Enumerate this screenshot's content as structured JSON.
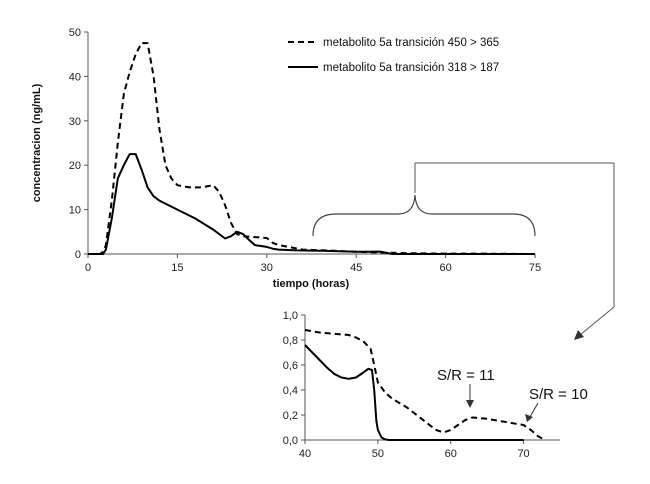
{
  "chart_data": [
    {
      "type": "line",
      "xlabel": "tiempo (horas)",
      "ylabel": "concentracion (ng/mL)",
      "xlim": [
        0,
        75
      ],
      "ylim": [
        0,
        50
      ],
      "xticks": [
        "0",
        "15",
        "30",
        "45",
        "60",
        "75"
      ],
      "yticks": [
        "0",
        "10",
        "20",
        "30",
        "40",
        "50"
      ],
      "legend_position": "top-right",
      "series": [
        {
          "name": "metabolito 5a transición 450 > 365",
          "style": "dashed",
          "color": "#000000",
          "x": [
            0,
            2,
            2.5,
            3,
            4,
            5,
            6,
            7,
            8,
            9,
            10,
            11,
            12,
            13,
            14,
            15,
            17,
            19,
            21,
            22,
            23,
            24,
            25,
            26,
            28,
            30,
            31,
            32,
            34,
            36,
            40,
            45,
            50,
            55,
            60,
            65,
            70,
            75
          ],
          "y": [
            0,
            0,
            0.5,
            2,
            12,
            25,
            36,
            41,
            45,
            47.5,
            47.5,
            40,
            28,
            20,
            17,
            15.5,
            15,
            15,
            15.5,
            14,
            11,
            7,
            4.5,
            4,
            3.8,
            3.6,
            2.5,
            2,
            1.5,
            1,
            0.8,
            0.5,
            0.3,
            0.15,
            0.1,
            0.1,
            0.05,
            0
          ]
        },
        {
          "name": "metabolito 5a transición 318 > 187",
          "style": "solid",
          "color": "#000000",
          "x": [
            0,
            2.5,
            3,
            4,
            5,
            6,
            7,
            8,
            9,
            10,
            11,
            12,
            15,
            18,
            21,
            22,
            23,
            24,
            25,
            26,
            27,
            28,
            30,
            31,
            32,
            35,
            40,
            45,
            49,
            50,
            51,
            75
          ],
          "y": [
            0,
            0,
            1,
            8,
            17,
            20,
            22.5,
            22.5,
            19,
            15,
            13,
            12,
            10,
            8,
            5.5,
            4.5,
            3.5,
            4,
            5,
            4.5,
            3.2,
            2,
            1.6,
            1.2,
            1,
            0.8,
            0.7,
            0.5,
            0.55,
            0.3,
            0,
            0
          ]
        }
      ]
    },
    {
      "type": "line",
      "xlim": [
        40,
        75
      ],
      "ylim": [
        0,
        1.0
      ],
      "xticks": [
        "40",
        "50",
        "60",
        "70"
      ],
      "yticks": [
        "0,0",
        "0,2",
        "0,4",
        "0,6",
        "0,8",
        "1,0"
      ],
      "annotations": [
        "S/R = 11",
        "S/R = 10"
      ],
      "series": [
        {
          "style": "dashed",
          "color": "#000000",
          "x": [
            40,
            42,
            44,
            46,
            47,
            48,
            49,
            49.5,
            50,
            51,
            52,
            54,
            56,
            58,
            59,
            60,
            61,
            62,
            63,
            65,
            67,
            69,
            70,
            71,
            72,
            73
          ],
          "y": [
            0.88,
            0.86,
            0.85,
            0.84,
            0.82,
            0.79,
            0.73,
            0.6,
            0.46,
            0.38,
            0.33,
            0.26,
            0.17,
            0.08,
            0.06,
            0.08,
            0.12,
            0.16,
            0.18,
            0.17,
            0.15,
            0.13,
            0.12,
            0.08,
            0.03,
            0
          ]
        },
        {
          "style": "solid",
          "color": "#000000",
          "x": [
            40,
            41,
            42,
            43,
            44,
            45,
            46,
            47,
            48,
            48.7,
            49.2,
            49.5,
            49.8,
            50,
            50.5,
            51,
            51.5,
            52,
            55,
            60,
            70
          ],
          "y": [
            0.76,
            0.7,
            0.64,
            0.58,
            0.53,
            0.5,
            0.49,
            0.5,
            0.54,
            0.57,
            0.56,
            0.4,
            0.15,
            0.08,
            0.02,
            0.005,
            0,
            0,
            0,
            0,
            0
          ]
        }
      ]
    }
  ]
}
